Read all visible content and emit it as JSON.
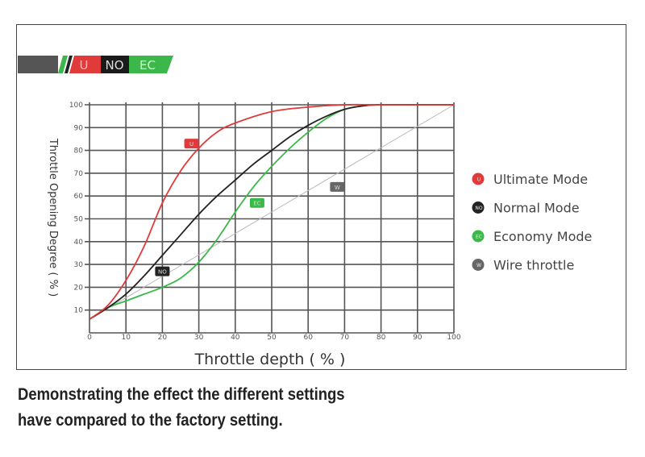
{
  "logo": {
    "u": "U",
    "no": "NO",
    "ec": "EC"
  },
  "chart_data": {
    "type": "line",
    "xlabel": "Throttle depth ( % )",
    "ylabel": "Throttle Opening Degree ( % )",
    "xlim": [
      0,
      100
    ],
    "ylim": [
      0,
      100
    ],
    "xticks": [
      0,
      10,
      20,
      30,
      40,
      50,
      60,
      70,
      80,
      90,
      100
    ],
    "yticks": [
      10,
      20,
      30,
      40,
      50,
      60,
      70,
      80,
      90,
      100
    ],
    "grid": true,
    "legend_position": "right",
    "series": [
      {
        "name": "Ultimate Mode",
        "badge": "U",
        "color": "#e03a3a",
        "x": [
          0,
          5,
          10,
          15,
          20,
          25,
          30,
          35,
          40,
          50,
          60,
          70,
          80,
          100
        ],
        "y": [
          6,
          12,
          23,
          38,
          57,
          71,
          81,
          88,
          92,
          97,
          99,
          100,
          100,
          100
        ],
        "label_at": [
          28,
          83
        ]
      },
      {
        "name": "Normal Mode",
        "badge": "NO",
        "color": "#222222",
        "x": [
          0,
          5,
          10,
          15,
          20,
          25,
          30,
          35,
          40,
          45,
          50,
          55,
          60,
          65,
          70,
          75,
          80,
          100
        ],
        "y": [
          6,
          11,
          17,
          25,
          34,
          43,
          52,
          60,
          67,
          74,
          80,
          86,
          91,
          95,
          98,
          99.5,
          100,
          100
        ],
        "label_at": [
          20,
          27
        ]
      },
      {
        "name": "Economy Mode",
        "badge": "EC",
        "color": "#3cb84a",
        "x": [
          0,
          5,
          10,
          15,
          20,
          25,
          30,
          35,
          40,
          45,
          50,
          55,
          60,
          65,
          70,
          75,
          80,
          100
        ],
        "y": [
          6,
          11,
          14,
          17,
          20,
          24,
          31,
          41,
          53,
          64,
          73,
          81,
          88,
          94,
          98,
          99.5,
          100,
          100
        ],
        "label_at": [
          46,
          57
        ]
      },
      {
        "name": "Wire throttle",
        "badge": "W",
        "color": "#bbbbbb",
        "x": [
          0,
          100
        ],
        "y": [
          6,
          100
        ],
        "label_at": [
          68,
          64
        ]
      }
    ]
  },
  "caption": {
    "line1": "Demonstrating the effect the different settings",
    "line2": "have compared to the factory setting."
  }
}
